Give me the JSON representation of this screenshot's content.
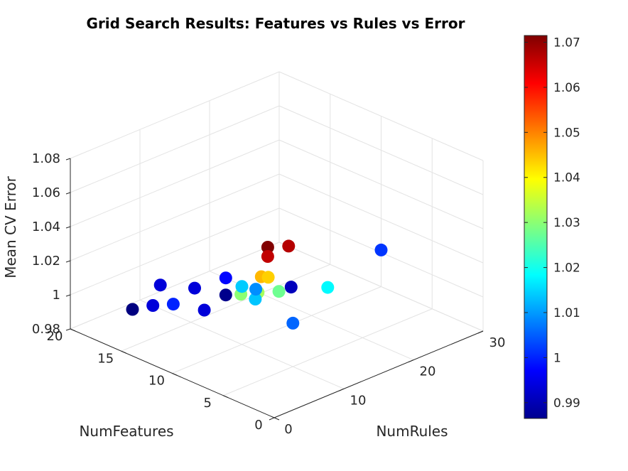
{
  "chart_data": {
    "type": "scatter",
    "title": "Grid Search Results: Features vs Rules vs Error",
    "xlabel": "NumFeatures",
    "ylabel": "NumRules",
    "zlabel": "Mean CV Error",
    "xlim": [
      0,
      20
    ],
    "ylim": [
      0,
      30
    ],
    "zlim": [
      0.98,
      1.08
    ],
    "xticks": [
      "0",
      "5",
      "10",
      "15",
      "20"
    ],
    "yticks": [
      "0",
      "10",
      "20",
      "30"
    ],
    "zticks": [
      "0.98",
      "1",
      "1.02",
      "1.04",
      "1.06",
      "1.08"
    ],
    "grid": true,
    "colormap": "jet",
    "colorbar": {
      "position": "right",
      "limits": [
        0.9865,
        1.0715
      ],
      "ticks": [
        "0.99",
        "1",
        "1.01",
        "1.02",
        "1.03",
        "1.04",
        "1.05",
        "1.06",
        "1.07"
      ]
    },
    "points": [
      {
        "x": 2,
        "y": 2,
        "z": 1.0714
      },
      {
        "x": 2,
        "y": 2,
        "z": 1.066
      },
      {
        "x": 2,
        "y": 5,
        "z": 1.067
      },
      {
        "x": 4,
        "y": 4,
        "z": 1.0455
      },
      {
        "x": 4,
        "y": 5,
        "z": 1.0435
      },
      {
        "x": 5,
        "y": 5,
        "z": 1.032
      },
      {
        "x": 6,
        "y": 4,
        "z": 1.03
      },
      {
        "x": 5,
        "y": 8,
        "z": 1.0275
      },
      {
        "x": 5,
        "y": 10,
        "z": 1.0055
      },
      {
        "x": 8,
        "y": 9,
        "z": 1.0135
      },
      {
        "x": 10,
        "y": 10,
        "z": 1.014
      },
      {
        "x": 10,
        "y": 12,
        "z": 1.009
      },
      {
        "x": 5,
        "y": 15,
        "z": 1.018
      },
      {
        "x": 14,
        "y": 6,
        "z": 1.0
      },
      {
        "x": 13,
        "y": 9,
        "z": 0.994
      },
      {
        "x": 16,
        "y": 6,
        "z": 0.994
      },
      {
        "x": 15,
        "y": 15,
        "z": 0.9975
      },
      {
        "x": 18,
        "y": 10,
        "z": 0.994
      },
      {
        "x": 16,
        "y": 12,
        "z": 0.994
      },
      {
        "x": 18,
        "y": 6,
        "z": 0.9865
      },
      {
        "x": 15,
        "y": 15,
        "z": 0.9875
      },
      {
        "x": 12,
        "y": 20,
        "z": 0.9915
      },
      {
        "x": 10,
        "y": 30,
        "z": 1.0015
      }
    ]
  }
}
